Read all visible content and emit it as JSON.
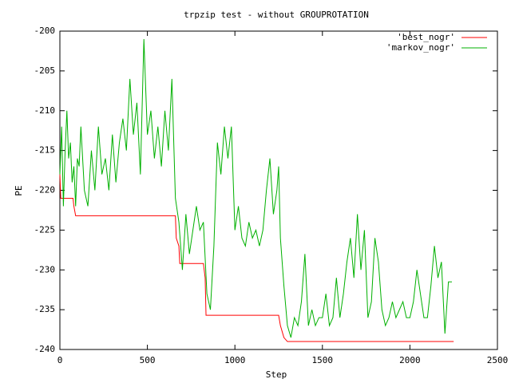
{
  "chart_data": {
    "type": "line",
    "title": "trpzip test - without GROUPROTATION",
    "x_label": "Step",
    "y_label": "PE",
    "xlim": [
      0,
      2500
    ],
    "xticks": [
      0,
      500,
      1000,
      1500,
      2000,
      2500
    ],
    "ylim": [
      -240,
      -200
    ],
    "yticks": [
      -240,
      -235,
      -230,
      -225,
      -220,
      -215,
      -210,
      -205,
      -200
    ],
    "legend": "top-right",
    "series": [
      {
        "name": "'best_nogr'",
        "color": "#ff0000",
        "x": [
          0,
          5,
          75,
          80,
          90,
          660,
          665,
          680,
          685,
          820,
          830,
          835,
          1250,
          1260,
          1280,
          1300,
          2250
        ],
        "values": [
          -218,
          -221,
          -221,
          -222,
          -223.2,
          -223.2,
          -226,
          -227,
          -229.2,
          -229.2,
          -231,
          -235.7,
          -235.7,
          -237,
          -238.5,
          -239,
          -239
        ]
      },
      {
        "name": "'markov_nogr'",
        "color": "#00b000",
        "x": [
          0,
          10,
          20,
          30,
          40,
          50,
          60,
          70,
          80,
          90,
          100,
          110,
          120,
          140,
          160,
          180,
          200,
          220,
          240,
          260,
          280,
          300,
          320,
          340,
          360,
          380,
          400,
          420,
          440,
          460,
          480,
          500,
          520,
          540,
          560,
          580,
          600,
          620,
          640,
          660,
          680,
          700,
          720,
          740,
          760,
          780,
          800,
          820,
          840,
          860,
          880,
          900,
          920,
          940,
          960,
          980,
          1000,
          1020,
          1040,
          1060,
          1080,
          1100,
          1120,
          1140,
          1160,
          1180,
          1200,
          1220,
          1240,
          1250,
          1260,
          1280,
          1300,
          1320,
          1340,
          1360,
          1380,
          1400,
          1420,
          1440,
          1460,
          1480,
          1500,
          1520,
          1540,
          1560,
          1580,
          1600,
          1620,
          1640,
          1660,
          1680,
          1700,
          1720,
          1740,
          1760,
          1780,
          1800,
          1820,
          1840,
          1860,
          1880,
          1900,
          1920,
          1940,
          1960,
          1980,
          2000,
          2020,
          2040,
          2060,
          2080,
          2100,
          2120,
          2140,
          2160,
          2180,
          2200,
          2220,
          2240
        ],
        "values": [
          -218,
          -212,
          -222,
          -215,
          -210,
          -216,
          -214,
          -219,
          -217,
          -222,
          -216,
          -217,
          -212,
          -220,
          -222,
          -215,
          -220,
          -212,
          -218,
          -216,
          -220,
          -213,
          -219,
          -214,
          -211,
          -215,
          -206,
          -213,
          -209,
          -218,
          -201,
          -213,
          -210,
          -216,
          -212,
          -217,
          -210,
          -215,
          -206,
          -221,
          -224,
          -230,
          -223,
          -228,
          -225,
          -222,
          -225,
          -224,
          -233,
          -235,
          -227,
          -214,
          -218,
          -212,
          -216,
          -212,
          -225,
          -222,
          -226,
          -227,
          -224,
          -226,
          -225,
          -227,
          -225,
          -220,
          -216,
          -223,
          -220,
          -217,
          -226,
          -232,
          -237,
          -238.5,
          -236,
          -237,
          -234,
          -228,
          -237,
          -235,
          -237,
          -236,
          -236,
          -233,
          -237,
          -236,
          -231,
          -236,
          -233,
          -229,
          -226,
          -231,
          -223,
          -230,
          -225,
          -236,
          -234,
          -226,
          -229,
          -235,
          -237,
          -236,
          -234,
          -236,
          -235,
          -234,
          -236,
          -236,
          -234,
          -230,
          -233,
          -236,
          -236,
          -232,
          -227,
          -231,
          -229,
          -238,
          -231.5,
          -231.5
        ]
      }
    ]
  }
}
